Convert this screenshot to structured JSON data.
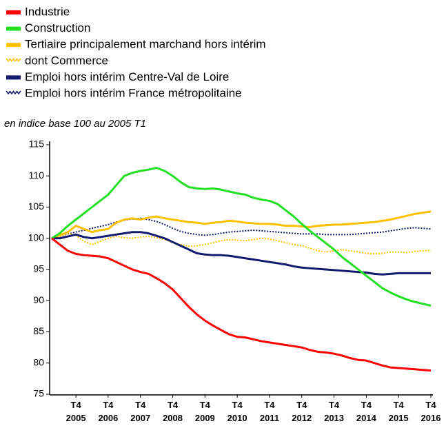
{
  "chart_data": {
    "type": "line",
    "subtitle": "en indice base 100 au 2005 T1",
    "categories": [
      null,
      null,
      null,
      "T4 2005",
      null,
      null,
      null,
      "T4 2006",
      null,
      null,
      null,
      "T4 2007",
      null,
      null,
      null,
      "T4 2008",
      null,
      null,
      null,
      "T4 2009",
      null,
      null,
      null,
      "T4 2010",
      null,
      null,
      null,
      "T4 2011",
      null,
      null,
      null,
      "T4 2012",
      null,
      null,
      null,
      "T4 2013",
      null,
      null,
      null,
      "T4 2014",
      null,
      null,
      null,
      "T4 2015",
      null,
      null,
      null,
      "T4 2016"
    ],
    "ylim": [
      75,
      115
    ],
    "yticks": [
      75,
      80,
      85,
      90,
      95,
      100,
      105,
      110,
      115
    ],
    "grid": false,
    "series": [
      {
        "name": "Industrie",
        "color": "#ff0000",
        "dashed": false,
        "values": [
          100,
          99,
          98,
          97.5,
          97.3,
          97.2,
          97.1,
          96.8,
          96.2,
          95.6,
          95,
          94.6,
          94.3,
          93.6,
          92.8,
          91.8,
          90.4,
          89,
          87.8,
          86.8,
          86,
          85.3,
          84.6,
          84.2,
          84.1,
          83.8,
          83.5,
          83.3,
          83.1,
          82.9,
          82.7,
          82.5,
          82.1,
          81.8,
          81.7,
          81.5,
          81.2,
          80.8,
          80.5,
          80.4,
          80,
          79.6,
          79.3,
          79.2,
          79.1,
          79,
          78.9,
          78.8
        ]
      },
      {
        "name": "Construction",
        "color": "#22e022",
        "dashed": false,
        "values": [
          100,
          100.8,
          102,
          103,
          104,
          105,
          106,
          107,
          108.5,
          110,
          110.5,
          110.8,
          111,
          111.3,
          110.8,
          110,
          109,
          108.2,
          108,
          107.9,
          108,
          107.8,
          107.5,
          107.2,
          107,
          106.5,
          106.2,
          106,
          105.5,
          104.5,
          103.5,
          102.3,
          101.2,
          100.2,
          99.2,
          98.2,
          97,
          96,
          95,
          94,
          93,
          92,
          91.3,
          90.7,
          90.2,
          89.8,
          89.5,
          89.2
        ]
      },
      {
        "name": "Tertiaire principalement marchand hors intérim",
        "color": "#ffc000",
        "dashed": false,
        "values": [
          100,
          100.5,
          101,
          102,
          101.5,
          101,
          101.3,
          101.5,
          102.5,
          103,
          103.2,
          103,
          103.3,
          103.5,
          103.2,
          103,
          102.8,
          102.6,
          102.5,
          102.3,
          102.5,
          102.6,
          102.8,
          102.7,
          102.5,
          102.4,
          102.3,
          102.3,
          102.2,
          102,
          102,
          101.9,
          101.8,
          102,
          102.1,
          102.2,
          102.2,
          102.3,
          102.4,
          102.5,
          102.6,
          102.8,
          103,
          103.3,
          103.6,
          103.9,
          104.1,
          104.3
        ]
      },
      {
        "name": "dont Commerce",
        "color": "#ffc000",
        "dashed": true,
        "values": [
          100,
          100.3,
          100.8,
          100.5,
          99.5,
          99,
          99.5,
          100,
          100.3,
          100.1,
          100,
          100.2,
          100.3,
          100.1,
          99.8,
          99.3,
          99,
          98.7,
          98.8,
          99,
          99.3,
          99.6,
          99.8,
          99.7,
          99.6,
          99.8,
          100,
          99.9,
          99.6,
          99.3,
          99,
          98.8,
          98.4,
          98,
          97.8,
          98,
          98.2,
          98,
          97.8,
          97.6,
          97.5,
          97.6,
          97.8,
          97.8,
          97.7,
          97.9,
          98,
          98.1
        ]
      },
      {
        "name": "Emploi hors intérim Centre-Val de Loire",
        "color": "#101a6e",
        "dashed": false,
        "values": [
          100,
          100,
          100.3,
          100.6,
          100.2,
          100,
          100.2,
          100.4,
          100.6,
          100.8,
          101,
          101,
          100.8,
          100.4,
          100,
          99.4,
          98.8,
          98.2,
          97.6,
          97.4,
          97.3,
          97.3,
          97.2,
          97,
          96.8,
          96.6,
          96.4,
          96.2,
          96,
          95.8,
          95.5,
          95.3,
          95.2,
          95.1,
          95,
          94.9,
          94.8,
          94.7,
          94.6,
          94.5,
          94.3,
          94.2,
          94.3,
          94.4,
          94.4,
          94.4,
          94.4,
          94.4
        ]
      },
      {
        "name": "Emploi hors intérim France métropolitaine",
        "color": "#101a6e",
        "dashed": true,
        "values": [
          100,
          100.3,
          100.7,
          101,
          101.3,
          101.6,
          101.9,
          102.2,
          102.6,
          102.9,
          103.1,
          103.2,
          103,
          102.7,
          102.2,
          101.6,
          101.1,
          100.8,
          100.6,
          100.5,
          100.6,
          100.8,
          101,
          101.1,
          101.2,
          101.3,
          101.2,
          101.1,
          101,
          100.9,
          100.8,
          100.7,
          100.7,
          100.7,
          100.6,
          100.6,
          100.6,
          100.6,
          100.7,
          100.8,
          100.9,
          101,
          101.2,
          101.4,
          101.6,
          101.7,
          101.6,
          101.5
        ]
      }
    ]
  }
}
